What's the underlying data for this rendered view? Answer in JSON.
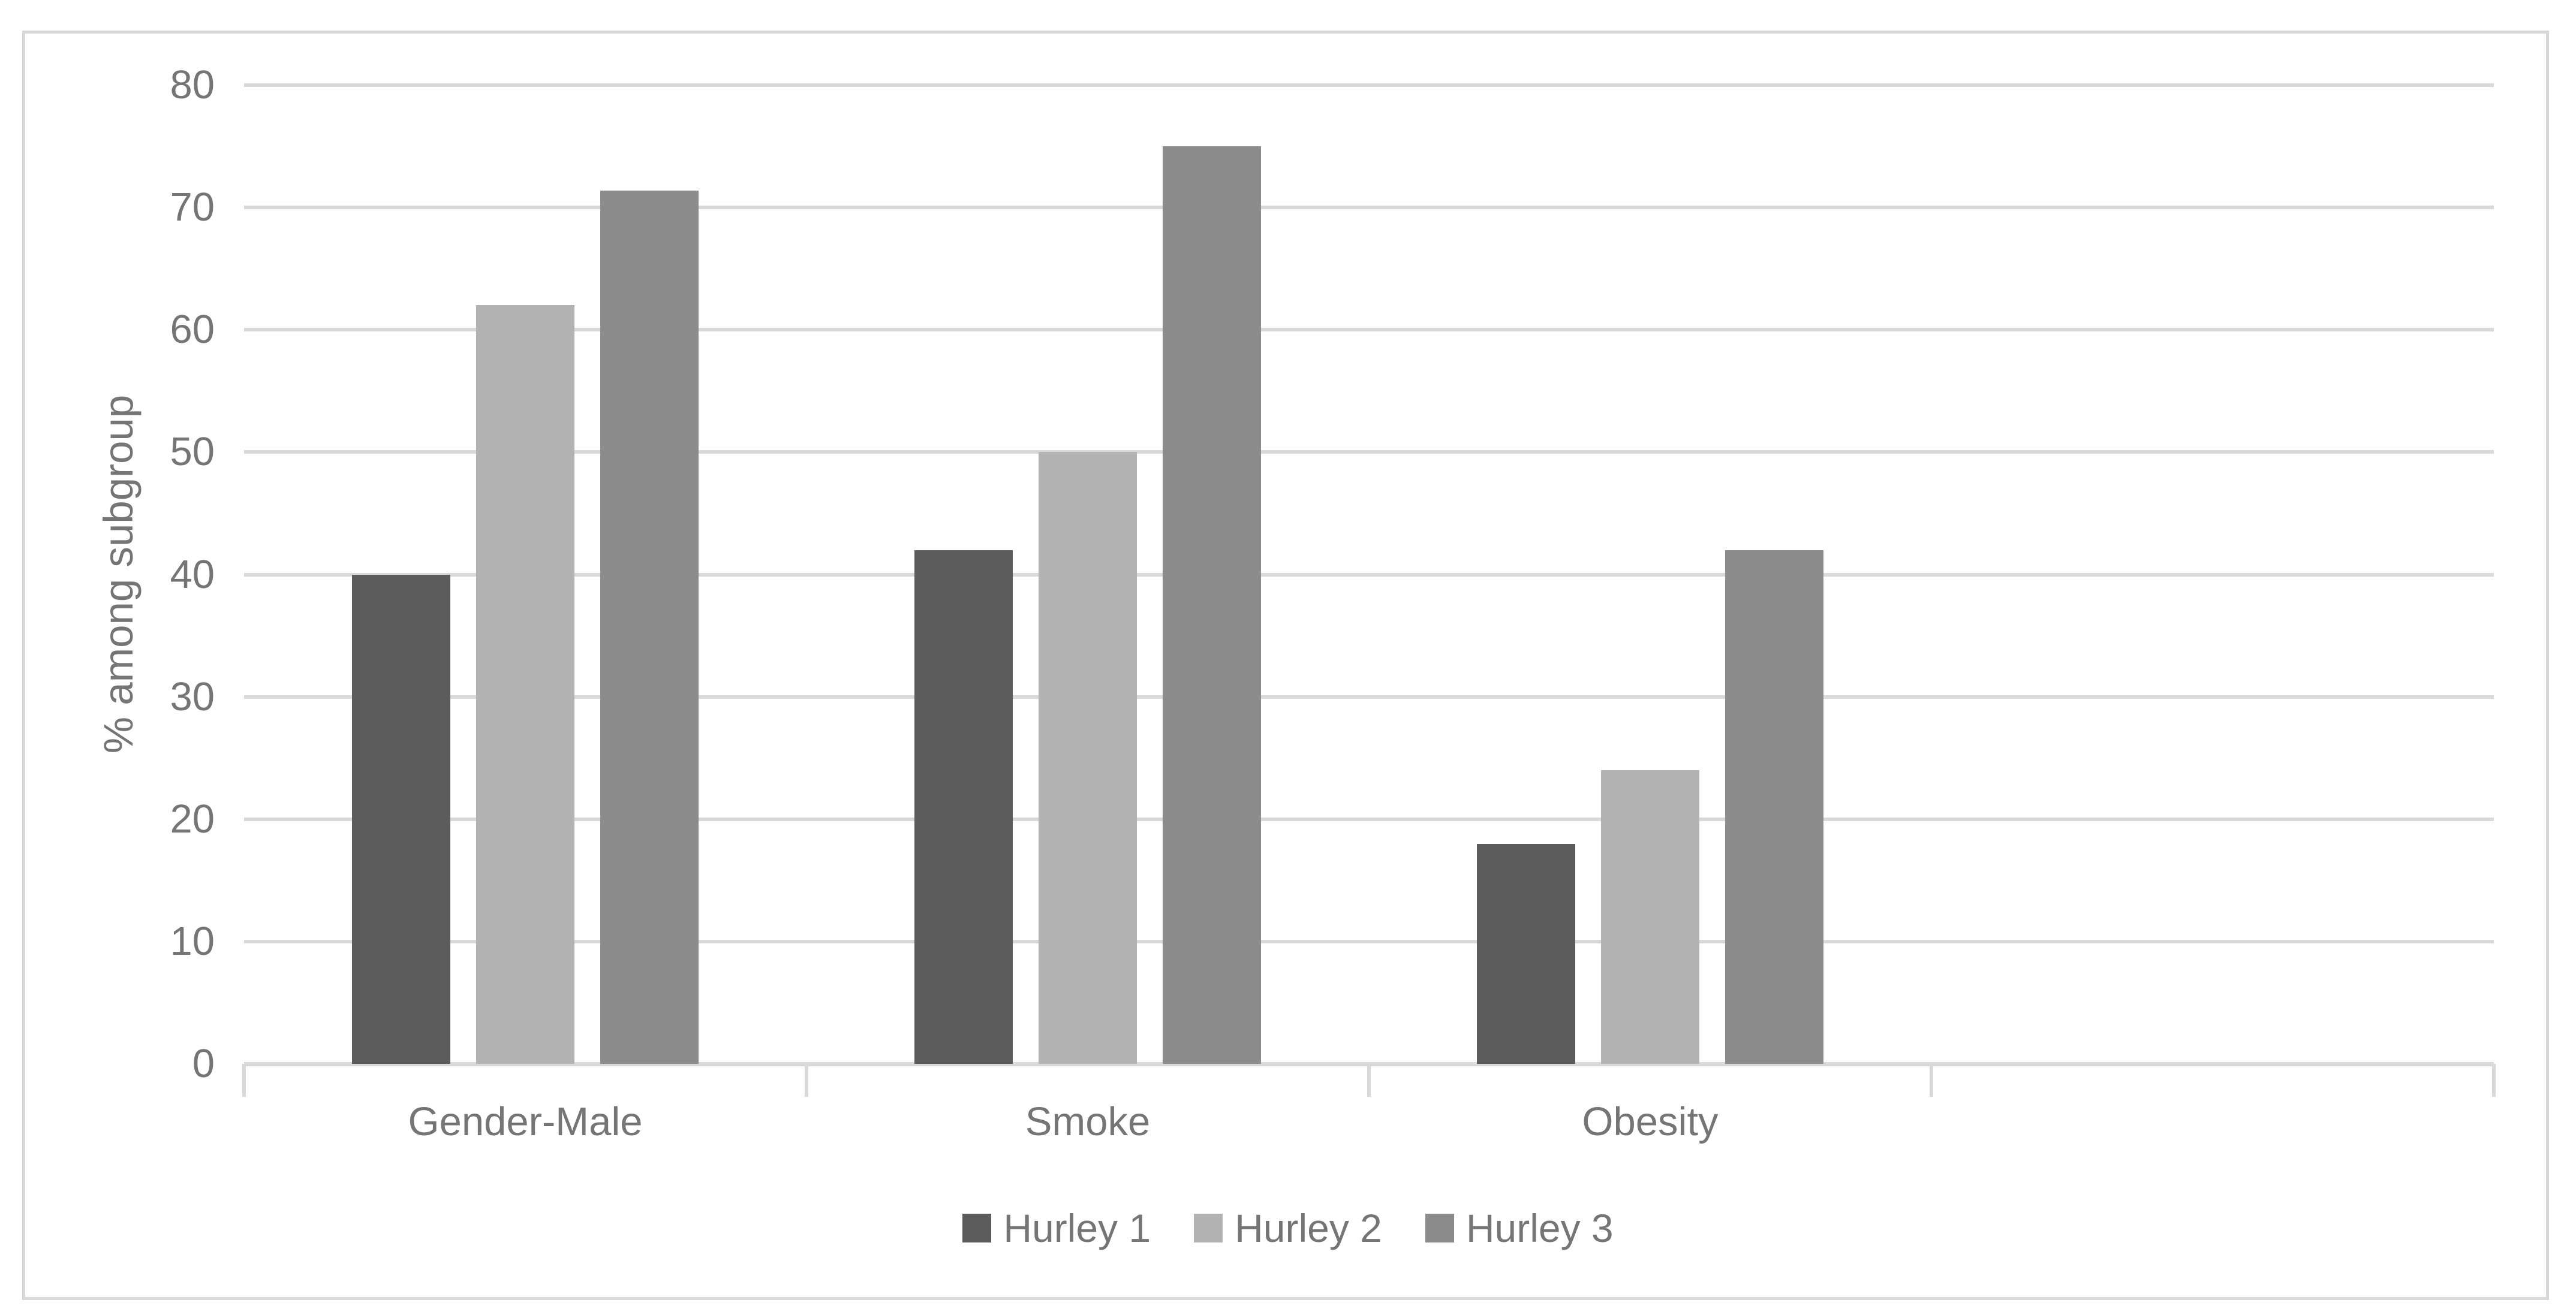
{
  "chart_data": {
    "type": "bar",
    "title": "",
    "ylabel": "% among subgroup",
    "xlabel": "",
    "categories": [
      "Gender-Male",
      "Smoke",
      "Obesity"
    ],
    "series": [
      {
        "name": "Hurley 1",
        "color": "#5c5c5c",
        "values": [
          40,
          42,
          18
        ]
      },
      {
        "name": "Hurley 2",
        "color": "#b3b3b3",
        "values": [
          62,
          50,
          24
        ]
      },
      {
        "name": "Hurley 3",
        "color": "#8c8c8c",
        "values": [
          71.4,
          75,
          42
        ]
      }
    ],
    "ylim": [
      0,
      80
    ],
    "yticks": [
      0,
      10,
      20,
      30,
      40,
      50,
      60,
      70,
      80
    ],
    "grid": true,
    "legend_position": "bottom",
    "num_x_slots": 4,
    "colors": {
      "background": "#ffffff",
      "border": "#d9d9d9",
      "gridline": "#d9d9d9",
      "axis": "#d9d9d9",
      "text": "#757575"
    }
  }
}
